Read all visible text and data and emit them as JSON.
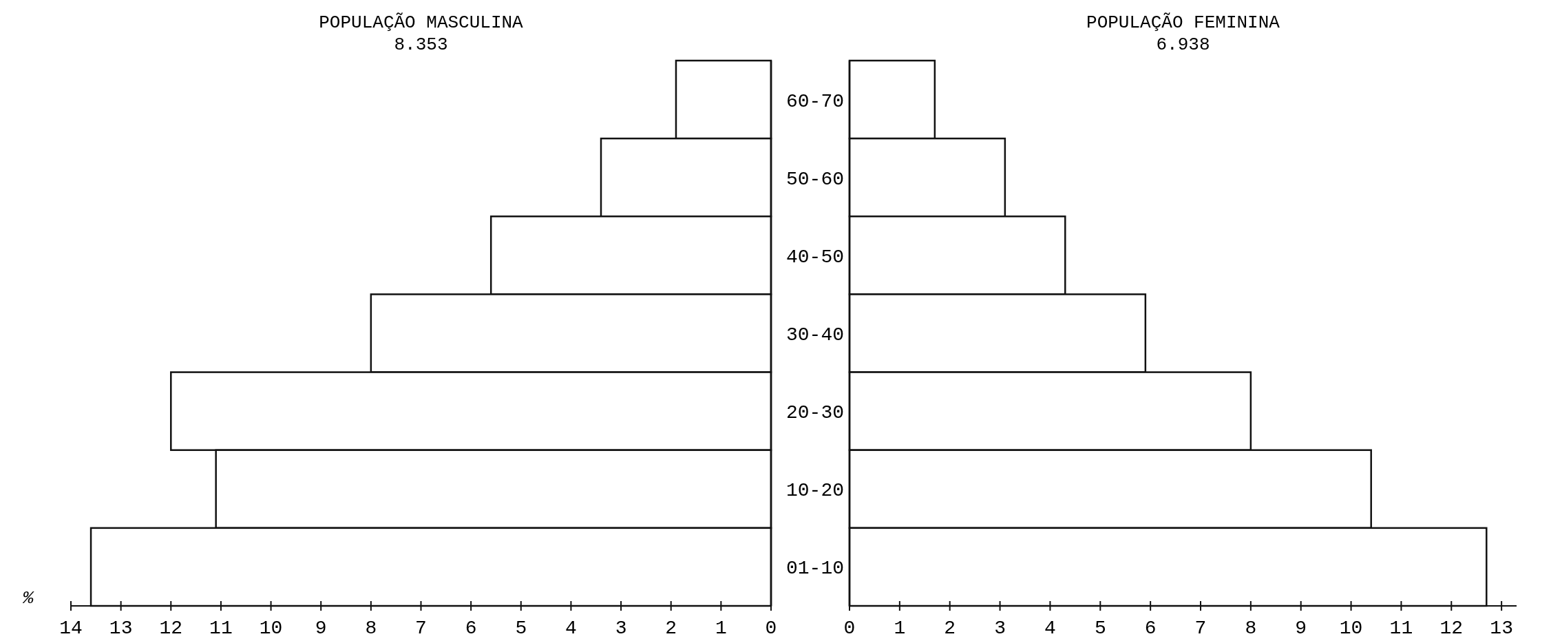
{
  "chart_data": [
    {
      "type": "bar",
      "orientation": "horizontal",
      "title": "POPULAÇÃO MASCULINA",
      "subtitle": "8.353",
      "xlabel": "%",
      "categories": [
        null,
        null,
        null,
        null,
        null,
        null,
        null
      ],
      "values": [
        1.9,
        3.4,
        5.6,
        8.0,
        12.0,
        11.1,
        13.6
      ],
      "color": "#ffffff",
      "xlim": [
        14,
        0
      ],
      "xticks": [
        14,
        13,
        12,
        11,
        10,
        9,
        8,
        7,
        6,
        5,
        4,
        3,
        2,
        1,
        0
      ]
    },
    {
      "type": "bar",
      "orientation": "horizontal",
      "title": "POPULAÇÃO FEMININA",
      "subtitle": "6.938",
      "categories": [
        "60-70",
        "50-60",
        "40-50",
        "30-40",
        "20-30",
        "10-20",
        "01-10"
      ],
      "values": [
        1.7,
        3.1,
        4.3,
        5.9,
        8.0,
        10.4,
        12.7
      ],
      "color": "#ffffff",
      "xlim": [
        0,
        13.3
      ],
      "xticks": [
        0,
        1,
        2,
        3,
        4,
        5,
        6,
        7,
        8,
        9,
        10,
        11,
        12,
        13
      ]
    }
  ]
}
